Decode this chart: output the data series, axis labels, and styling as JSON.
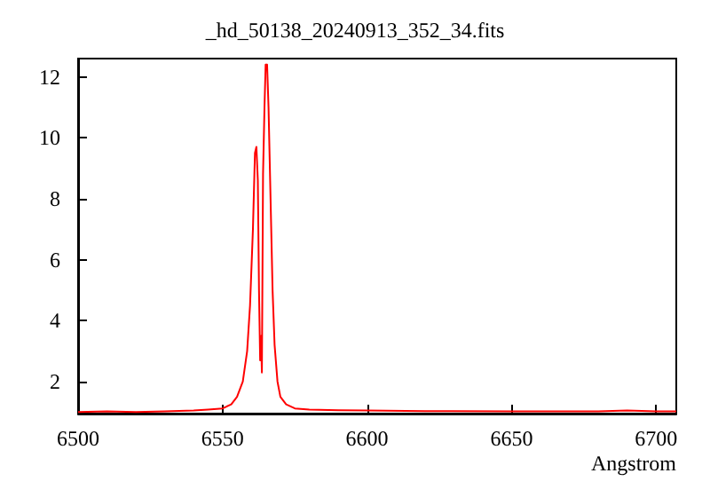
{
  "chart_data": {
    "type": "line",
    "title": "_hd_50138_20240913_352_34.fits",
    "xlabel": "Angstrom",
    "x": [
      6500,
      6510,
      6520,
      6530,
      6540,
      6545,
      6550,
      6553,
      6555,
      6557,
      6558.5,
      6559.5,
      6560.5,
      6561.2,
      6561.7,
      6562.2,
      6562.6,
      6563.0,
      6563.3,
      6563.6,
      6564.0,
      6564.5,
      6564.9,
      6565.4,
      6565.9,
      6566.6,
      6567.3,
      6568,
      6569,
      6570,
      6572,
      6575,
      6580,
      6590,
      6600,
      6620,
      6650,
      6680,
      6690,
      6700,
      6707
    ],
    "series": [
      {
        "color": "#ff0000",
        "values": [
          1.0,
          1.02,
          1.0,
          1.02,
          1.05,
          1.08,
          1.12,
          1.25,
          1.5,
          2.0,
          3.0,
          4.5,
          7.0,
          9.5,
          9.7,
          8.6,
          5.0,
          2.7,
          3.5,
          2.3,
          8.8,
          11.0,
          12.4,
          12.4,
          11.0,
          8.0,
          5.0,
          3.2,
          2.0,
          1.5,
          1.25,
          1.12,
          1.08,
          1.06,
          1.05,
          1.03,
          1.02,
          1.02,
          1.05,
          1.02,
          1.02
        ]
      }
    ],
    "xlim": [
      6500,
      6707
    ],
    "xticks": [
      6500,
      6550,
      6600,
      6650,
      6700
    ],
    "ylim": [
      0.95,
      12.6
    ],
    "yticks": [
      2,
      4,
      6,
      8,
      10,
      12
    ],
    "grid": false,
    "marker": "none",
    "line_style": "solid"
  }
}
